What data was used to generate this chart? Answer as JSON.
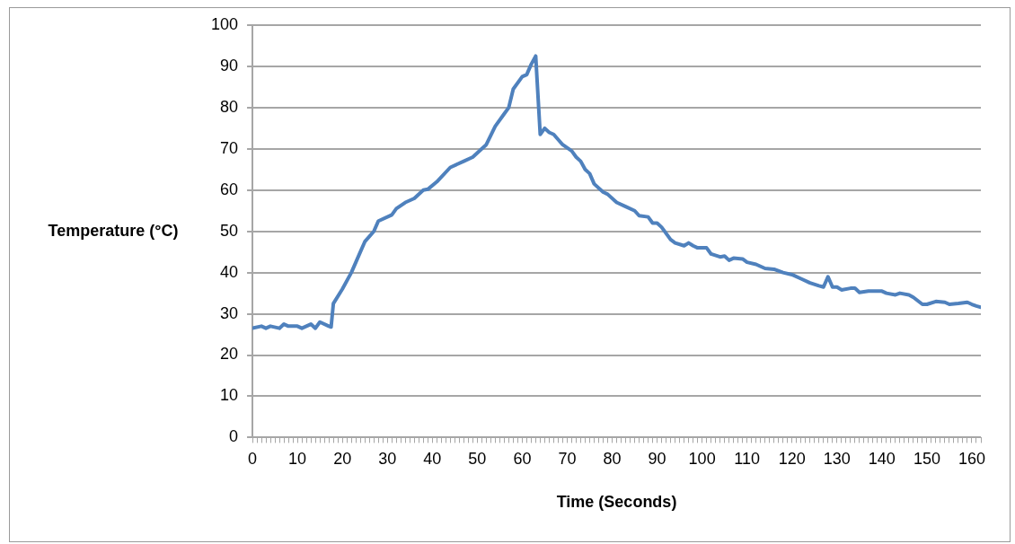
{
  "chart_data": {
    "type": "line",
    "xlabel": "Time (Seconds)",
    "ylabel": "Temperature (°C)",
    "series": [
      {
        "color": "#4f81bd",
        "x": [
          0,
          2,
          3,
          4,
          6,
          7,
          8,
          10,
          11,
          13,
          14,
          15,
          17,
          17.5,
          18,
          20,
          22,
          24,
          25,
          27,
          28,
          31,
          32,
          34,
          36,
          38,
          39,
          41,
          44,
          47,
          49,
          51,
          52,
          54,
          56,
          57,
          58,
          60,
          61,
          62,
          63,
          64,
          65,
          66,
          67,
          69,
          71,
          72,
          73,
          74,
          75,
          76,
          78,
          79,
          81,
          83,
          85,
          86,
          88,
          89,
          90,
          91,
          93,
          94,
          96,
          97,
          98,
          99,
          101,
          102,
          104,
          105,
          106,
          107,
          109,
          110,
          112,
          114,
          116,
          118,
          120,
          122,
          124,
          126,
          127,
          128,
          129,
          130,
          131,
          133,
          134,
          135,
          137,
          139,
          140,
          141,
          143,
          144,
          146,
          147,
          149,
          150,
          152,
          154,
          155,
          157,
          159,
          160,
          161,
          162
        ],
        "values": [
          26.5,
          27,
          26.5,
          27,
          26.5,
          27.5,
          27,
          27,
          26.5,
          27.5,
          26.5,
          28,
          27,
          26.8,
          32.5,
          36,
          40,
          45,
          47.5,
          50,
          52.5,
          54,
          55.5,
          57,
          58,
          60,
          60.2,
          62,
          65.5,
          67,
          68,
          70,
          71,
          75.5,
          78.5,
          80,
          84.5,
          87.5,
          88,
          90.5,
          92.5,
          73.5,
          75,
          74,
          73.5,
          71,
          69.5,
          68,
          67,
          65,
          64,
          61.5,
          59.5,
          59,
          57,
          56,
          55,
          53.8,
          53.5,
          52,
          52,
          51,
          48,
          47.2,
          46.5,
          47.2,
          46.5,
          46,
          46,
          44.5,
          43.8,
          44,
          43,
          43.5,
          43.3,
          42.5,
          42,
          41,
          40.8,
          40,
          39.5,
          38.5,
          37.5,
          36.8,
          36.5,
          39,
          36.5,
          36.5,
          35.8,
          36.2,
          36.2,
          35.2,
          35.5,
          35.5,
          35.5,
          35,
          34.6,
          35,
          34.6,
          34,
          32.3,
          32.3,
          33,
          32.8,
          32.3,
          32.5,
          32.8,
          32.3,
          31.9,
          31.6
        ]
      }
    ],
    "xlim": [
      0,
      162
    ],
    "xticks": [
      0,
      {
        "value": 1,
        "label": null
      },
      {
        "value": 2,
        "label": null
      },
      {
        "value": 3,
        "label": null
      },
      {
        "value": 4,
        "label": null
      },
      {
        "value": 5,
        "label": null
      },
      {
        "value": 6,
        "label": null
      },
      {
        "value": 7,
        "label": null
      },
      {
        "value": 8,
        "label": null
      },
      {
        "value": 9,
        "label": null
      },
      10,
      {
        "value": 11,
        "label": null
      },
      {
        "value": 12,
        "label": null
      },
      {
        "value": 13,
        "label": null
      },
      {
        "value": 14,
        "label": null
      },
      {
        "value": 15,
        "label": null
      },
      {
        "value": 16,
        "label": null
      },
      {
        "value": 17,
        "label": null
      },
      {
        "value": 18,
        "label": null
      },
      {
        "value": 19,
        "label": null
      },
      20,
      {
        "value": 21,
        "label": null
      },
      {
        "value": 22,
        "label": null
      },
      {
        "value": 23,
        "label": null
      },
      {
        "value": 24,
        "label": null
      },
      {
        "value": 25,
        "label": null
      },
      {
        "value": 26,
        "label": null
      },
      {
        "value": 27,
        "label": null
      },
      {
        "value": 28,
        "label": null
      },
      {
        "value": 29,
        "label": null
      },
      30,
      {
        "value": 31,
        "label": null
      },
      {
        "value": 32,
        "label": null
      },
      {
        "value": 33,
        "label": null
      },
      {
        "value": 34,
        "label": null
      },
      {
        "value": 35,
        "label": null
      },
      {
        "value": 36,
        "label": null
      },
      {
        "value": 37,
        "label": null
      },
      {
        "value": 38,
        "label": null
      },
      {
        "value": 39,
        "label": null
      },
      40,
      {
        "value": 41,
        "label": null
      },
      {
        "value": 42,
        "label": null
      },
      {
        "value": 43,
        "label": null
      },
      {
        "value": 44,
        "label": null
      },
      {
        "value": 45,
        "label": null
      },
      {
        "value": 46,
        "label": null
      },
      {
        "value": 47,
        "label": null
      },
      {
        "value": 48,
        "label": null
      },
      {
        "value": 49,
        "label": null
      },
      50,
      {
        "value": 51,
        "label": null
      },
      {
        "value": 52,
        "label": null
      },
      {
        "value": 53,
        "label": null
      },
      {
        "value": 54,
        "label": null
      },
      {
        "value": 55,
        "label": null
      },
      {
        "value": 56,
        "label": null
      },
      {
        "value": 57,
        "label": null
      },
      {
        "value": 58,
        "label": null
      },
      {
        "value": 59,
        "label": null
      },
      60,
      {
        "value": 61,
        "label": null
      },
      {
        "value": 62,
        "label": null
      },
      {
        "value": 63,
        "label": null
      },
      {
        "value": 64,
        "label": null
      },
      {
        "value": 65,
        "label": null
      },
      {
        "value": 66,
        "label": null
      },
      {
        "value": 67,
        "label": null
      },
      {
        "value": 68,
        "label": null
      },
      {
        "value": 69,
        "label": null
      },
      70,
      {
        "value": 71,
        "label": null
      },
      {
        "value": 72,
        "label": null
      },
      {
        "value": 73,
        "label": null
      },
      {
        "value": 74,
        "label": null
      },
      {
        "value": 75,
        "label": null
      },
      {
        "value": 76,
        "label": null
      },
      {
        "value": 77,
        "label": null
      },
      {
        "value": 78,
        "label": null
      },
      {
        "value": 79,
        "label": null
      },
      80,
      {
        "value": 81,
        "label": null
      },
      {
        "value": 82,
        "label": null
      },
      {
        "value": 83,
        "label": null
      },
      {
        "value": 84,
        "label": null
      },
      {
        "value": 85,
        "label": null
      },
      {
        "value": 86,
        "label": null
      },
      {
        "value": 87,
        "label": null
      },
      {
        "value": 88,
        "label": null
      },
      {
        "value": 89,
        "label": null
      },
      90,
      {
        "value": 91,
        "label": null
      },
      {
        "value": 92,
        "label": null
      },
      {
        "value": 93,
        "label": null
      },
      {
        "value": 94,
        "label": null
      },
      {
        "value": 95,
        "label": null
      },
      {
        "value": 96,
        "label": null
      },
      {
        "value": 97,
        "label": null
      },
      {
        "value": 98,
        "label": null
      },
      {
        "value": 99,
        "label": null
      },
      100,
      {
        "value": 101,
        "label": null
      },
      {
        "value": 102,
        "label": null
      },
      {
        "value": 103,
        "label": null
      },
      {
        "value": 104,
        "label": null
      },
      {
        "value": 105,
        "label": null
      },
      {
        "value": 106,
        "label": null
      },
      {
        "value": 107,
        "label": null
      },
      {
        "value": 108,
        "label": null
      },
      {
        "value": 109,
        "label": null
      },
      110,
      {
        "value": 111,
        "label": null
      },
      {
        "value": 112,
        "label": null
      },
      {
        "value": 113,
        "label": null
      },
      {
        "value": 114,
        "label": null
      },
      {
        "value": 115,
        "label": null
      },
      {
        "value": 116,
        "label": null
      },
      {
        "value": 117,
        "label": null
      },
      {
        "value": 118,
        "label": null
      },
      {
        "value": 119,
        "label": null
      },
      120,
      {
        "value": 121,
        "label": null
      },
      {
        "value": 122,
        "label": null
      },
      {
        "value": 123,
        "label": null
      },
      {
        "value": 124,
        "label": null
      },
      {
        "value": 125,
        "label": null
      },
      {
        "value": 126,
        "label": null
      },
      {
        "value": 127,
        "label": null
      },
      {
        "value": 128,
        "label": null
      },
      {
        "value": 129,
        "label": null
      },
      130,
      {
        "value": 131,
        "label": null
      },
      {
        "value": 132,
        "label": null
      },
      {
        "value": 133,
        "label": null
      },
      {
        "value": 134,
        "label": null
      },
      {
        "value": 135,
        "label": null
      },
      {
        "value": 136,
        "label": null
      },
      {
        "value": 137,
        "label": null
      },
      {
        "value": 138,
        "label": null
      },
      {
        "value": 139,
        "label": null
      },
      140,
      {
        "value": 141,
        "label": null
      },
      {
        "value": 142,
        "label": null
      },
      {
        "value": 143,
        "label": null
      },
      {
        "value": 144,
        "label": null
      },
      {
        "value": 145,
        "label": null
      },
      {
        "value": 146,
        "label": null
      },
      {
        "value": 147,
        "label": null
      },
      {
        "value": 148,
        "label": null
      },
      {
        "value": 149,
        "label": null
      },
      150,
      {
        "value": 151,
        "label": null
      },
      {
        "value": 152,
        "label": null
      },
      {
        "value": 153,
        "label": null
      },
      {
        "value": 154,
        "label": null
      },
      {
        "value": 155,
        "label": null
      },
      {
        "value": 156,
        "label": null
      },
      {
        "value": 157,
        "label": null
      },
      {
        "value": 158,
        "label": null
      },
      {
        "value": 159,
        "label": null
      },
      160,
      {
        "value": 161,
        "label": null
      },
      {
        "value": 162,
        "label": null
      }
    ],
    "ylim": [
      0,
      100
    ],
    "yticks": [
      0,
      10,
      20,
      30,
      40,
      50,
      60,
      70,
      80,
      90,
      100
    ],
    "grid": "y",
    "legend": false,
    "marker": "none",
    "line_style": "solid"
  }
}
